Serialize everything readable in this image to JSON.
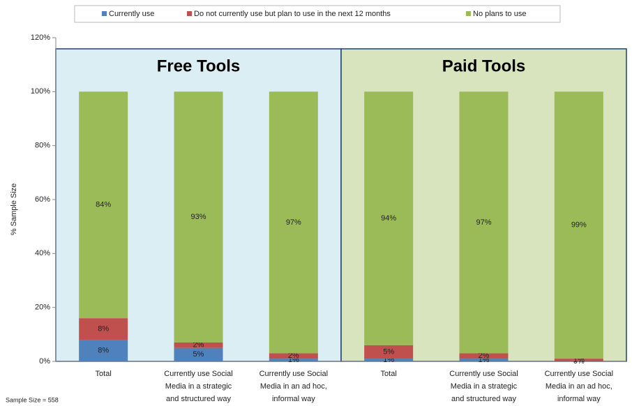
{
  "chart_data": {
    "type": "stacked_bar",
    "y_axis_label": "% Sample Size",
    "annotation": "Sample Size = 558",
    "categories": [
      "Total",
      "Currently use Social Media in a strategic and structured way",
      "Currently use Social Media in an ad hoc, informal way",
      "Total",
      "Currently use Social Media in a strategic and structured way",
      "Currently use Social Media in an ad hoc, informal way"
    ],
    "panels": [
      {
        "label": "Free Tools",
        "color": "#dbeef4",
        "span": 3
      },
      {
        "label": "Paid Tools",
        "color": "#d7e4bd",
        "span": 3
      }
    ],
    "series": [
      {
        "name": "Currently use",
        "color": "#4f81bd",
        "values": [
          8,
          5,
          1,
          1,
          1,
          0
        ],
        "value_labels": [
          "8%",
          "5%",
          "1%",
          "1%",
          "1%",
          "0%"
        ]
      },
      {
        "name": "Do not currently use but plan to use in the next 12 months",
        "color": "#c0504d",
        "values": [
          8,
          2,
          2,
          5,
          2,
          1
        ],
        "value_labels": [
          "8%",
          "2%",
          "2%",
          "5%",
          "2%",
          "1%"
        ]
      },
      {
        "name": "No plans to use",
        "color": "#9bbb59",
        "values": [
          84,
          93,
          97,
          94,
          97,
          99
        ],
        "value_labels": [
          "84%",
          "93%",
          "97%",
          "94%",
          "97%",
          "99%"
        ]
      }
    ],
    "ylim": [
      0,
      120
    ],
    "yticks": [
      {
        "value": 0,
        "label": "0%"
      },
      {
        "value": 20,
        "label": "20%"
      },
      {
        "value": 40,
        "label": "40%"
      },
      {
        "value": 60,
        "label": "60%"
      },
      {
        "value": 80,
        "label": "80%"
      },
      {
        "value": 100,
        "label": "100%"
      },
      {
        "value": 120,
        "label": "120%"
      }
    ],
    "legend": "top"
  }
}
